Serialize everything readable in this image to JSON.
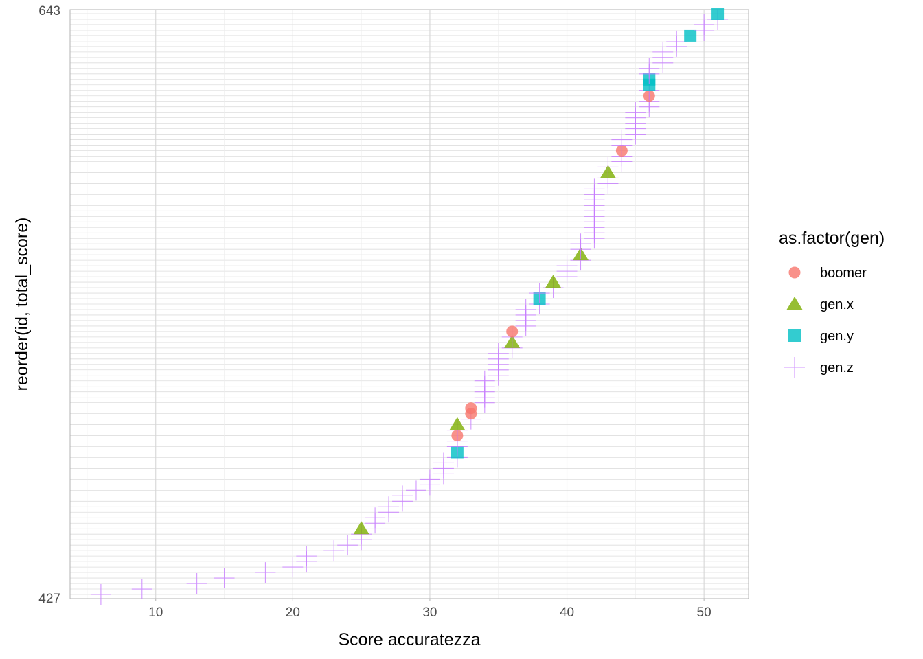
{
  "chart_data": {
    "type": "scatter",
    "xlabel": "Score accuratezza",
    "ylabel": "reorder(id, total_score)",
    "xlim": [
      3.75,
      53.25
    ],
    "x_ticks": [
      10,
      20,
      30,
      40,
      50
    ],
    "grid": true,
    "legend": {
      "title": "as.factor(gen)",
      "position": "right",
      "entries": [
        {
          "name": "boomer",
          "shape": "circle",
          "color": "#F8766D"
        },
        {
          "name": "gen.x",
          "shape": "triangle",
          "color": "#7CAE00"
        },
        {
          "name": "gen.y",
          "shape": "square",
          "color": "#00BFC4"
        },
        {
          "name": "gen.z",
          "shape": "plus",
          "color": "#C77CFF"
        }
      ]
    },
    "y_ticks_visible": [
      "643",
      "427"
    ],
    "points": [
      {
        "x": 6,
        "gen": "gen.z"
      },
      {
        "x": 9,
        "gen": "gen.z"
      },
      {
        "x": 13,
        "gen": "gen.z"
      },
      {
        "x": 15,
        "gen": "gen.z"
      },
      {
        "x": 18,
        "gen": "gen.z"
      },
      {
        "x": 20,
        "gen": "gen.z"
      },
      {
        "x": 21,
        "gen": "gen.z"
      },
      {
        "x": 21,
        "gen": "gen.z"
      },
      {
        "x": 23,
        "gen": "gen.z"
      },
      {
        "x": 24,
        "gen": "gen.z"
      },
      {
        "x": 25,
        "gen": "gen.z"
      },
      {
        "x": 25,
        "gen": "gen.z"
      },
      {
        "x": 25,
        "gen": "gen.x"
      },
      {
        "x": 26,
        "gen": "gen.z"
      },
      {
        "x": 26,
        "gen": "gen.z"
      },
      {
        "x": 27,
        "gen": "gen.z"
      },
      {
        "x": 27,
        "gen": "gen.z"
      },
      {
        "x": 28,
        "gen": "gen.z"
      },
      {
        "x": 28,
        "gen": "gen.z"
      },
      {
        "x": 29,
        "gen": "gen.z"
      },
      {
        "x": 30,
        "gen": "gen.z"
      },
      {
        "x": 30,
        "gen": "gen.z"
      },
      {
        "x": 31,
        "gen": "gen.z"
      },
      {
        "x": 31,
        "gen": "gen.z"
      },
      {
        "x": 31,
        "gen": "gen.z"
      },
      {
        "x": 32,
        "gen": "gen.z"
      },
      {
        "x": 32,
        "gen": "gen.y"
      },
      {
        "x": 32,
        "gen": "gen.z"
      },
      {
        "x": 32,
        "gen": "gen.z"
      },
      {
        "x": 32,
        "gen": "boomer"
      },
      {
        "x": 32,
        "gen": "gen.z"
      },
      {
        "x": 32,
        "gen": "gen.x"
      },
      {
        "x": 33,
        "gen": "gen.z"
      },
      {
        "x": 33,
        "gen": "boomer"
      },
      {
        "x": 33,
        "gen": "boomer"
      },
      {
        "x": 34,
        "gen": "gen.z"
      },
      {
        "x": 34,
        "gen": "gen.z"
      },
      {
        "x": 34,
        "gen": "gen.z"
      },
      {
        "x": 34,
        "gen": "gen.z"
      },
      {
        "x": 34,
        "gen": "gen.z"
      },
      {
        "x": 35,
        "gen": "gen.z"
      },
      {
        "x": 35,
        "gen": "gen.z"
      },
      {
        "x": 35,
        "gen": "gen.z"
      },
      {
        "x": 35,
        "gen": "gen.z"
      },
      {
        "x": 35,
        "gen": "gen.z"
      },
      {
        "x": 36,
        "gen": "gen.z"
      },
      {
        "x": 36,
        "gen": "gen.x"
      },
      {
        "x": 36,
        "gen": "gen.z"
      },
      {
        "x": 36,
        "gen": "boomer"
      },
      {
        "x": 37,
        "gen": "gen.z"
      },
      {
        "x": 37,
        "gen": "gen.z"
      },
      {
        "x": 37,
        "gen": "gen.z"
      },
      {
        "x": 37,
        "gen": "gen.z"
      },
      {
        "x": 38,
        "gen": "gen.z"
      },
      {
        "x": 38,
        "gen": "gen.y"
      },
      {
        "x": 38,
        "gen": "gen.z"
      },
      {
        "x": 39,
        "gen": "gen.z"
      },
      {
        "x": 39,
        "gen": "gen.x"
      },
      {
        "x": 40,
        "gen": "gen.z"
      },
      {
        "x": 40,
        "gen": "gen.z"
      },
      {
        "x": 40,
        "gen": "gen.z"
      },
      {
        "x": 41,
        "gen": "gen.z"
      },
      {
        "x": 41,
        "gen": "gen.x"
      },
      {
        "x": 41,
        "gen": "gen.z"
      },
      {
        "x": 41,
        "gen": "gen.z"
      },
      {
        "x": 42,
        "gen": "gen.z"
      },
      {
        "x": 42,
        "gen": "gen.z"
      },
      {
        "x": 42,
        "gen": "gen.z"
      },
      {
        "x": 42,
        "gen": "gen.z"
      },
      {
        "x": 42,
        "gen": "gen.z"
      },
      {
        "x": 42,
        "gen": "gen.z"
      },
      {
        "x": 42,
        "gen": "gen.z"
      },
      {
        "x": 42,
        "gen": "gen.z"
      },
      {
        "x": 42,
        "gen": "gen.z"
      },
      {
        "x": 42,
        "gen": "gen.z"
      },
      {
        "x": 43,
        "gen": "gen.z"
      },
      {
        "x": 43,
        "gen": "gen.z"
      },
      {
        "x": 43,
        "gen": "gen.x"
      },
      {
        "x": 43,
        "gen": "gen.z"
      },
      {
        "x": 44,
        "gen": "gen.z"
      },
      {
        "x": 44,
        "gen": "gen.z"
      },
      {
        "x": 44,
        "gen": "boomer"
      },
      {
        "x": 44,
        "gen": "gen.z"
      },
      {
        "x": 44,
        "gen": "gen.z"
      },
      {
        "x": 45,
        "gen": "gen.z"
      },
      {
        "x": 45,
        "gen": "gen.z"
      },
      {
        "x": 45,
        "gen": "gen.z"
      },
      {
        "x": 45,
        "gen": "gen.z"
      },
      {
        "x": 45,
        "gen": "gen.z"
      },
      {
        "x": 46,
        "gen": "gen.z"
      },
      {
        "x": 46,
        "gen": "gen.z"
      },
      {
        "x": 46,
        "gen": "boomer"
      },
      {
        "x": 46,
        "gen": "gen.z"
      },
      {
        "x": 46,
        "gen": "gen.y"
      },
      {
        "x": 46,
        "gen": "gen.y"
      },
      {
        "x": 46,
        "gen": "gen.z"
      },
      {
        "x": 46,
        "gen": "gen.z"
      },
      {
        "x": 47,
        "gen": "gen.z"
      },
      {
        "x": 47,
        "gen": "gen.z"
      },
      {
        "x": 47,
        "gen": "gen.z"
      },
      {
        "x": 48,
        "gen": "gen.z"
      },
      {
        "x": 48,
        "gen": "gen.z"
      },
      {
        "x": 49,
        "gen": "gen.y"
      },
      {
        "x": 50,
        "gen": "gen.z"
      },
      {
        "x": 50,
        "gen": "gen.z"
      },
      {
        "x": 51,
        "gen": "gen.z"
      },
      {
        "x": 51,
        "gen": "gen.y"
      }
    ]
  }
}
